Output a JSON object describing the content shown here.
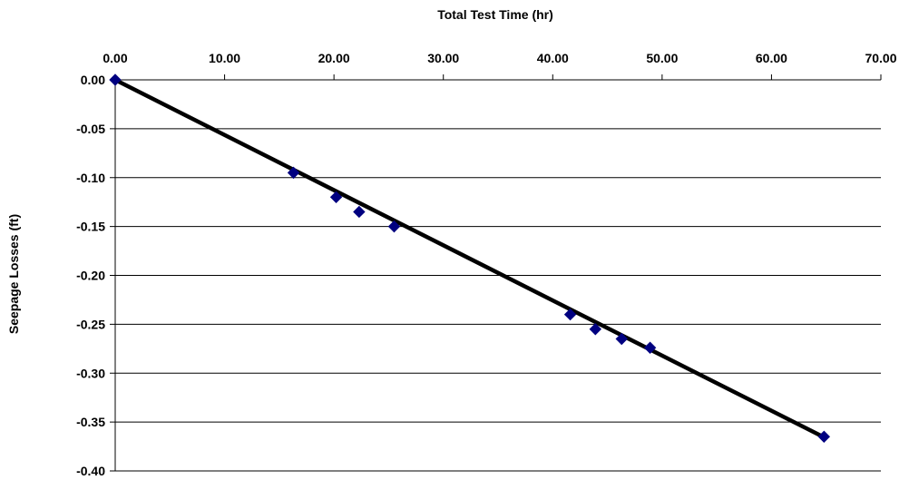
{
  "chart_data": {
    "type": "scatter",
    "title": "",
    "xlabel": "Total Test Time (hr)",
    "ylabel": "Seepage Losses (ft)",
    "x_axis_position": "top",
    "xlim": [
      0,
      70
    ],
    "ylim": [
      -0.4,
      0.0
    ],
    "x_ticks": [
      "0.00",
      "10.00",
      "20.00",
      "30.00",
      "40.00",
      "50.00",
      "60.00",
      "70.00"
    ],
    "y_ticks": [
      "0.00",
      "-0.05",
      "-0.10",
      "-0.15",
      "-0.20",
      "-0.25",
      "-0.30",
      "-0.35",
      "-0.40"
    ],
    "grid": {
      "horizontal": true,
      "vertical": false
    },
    "legend": "none",
    "series": [
      {
        "x": [
          0.0,
          16.3,
          20.2,
          22.3,
          25.5,
          41.6,
          43.9,
          46.3,
          48.9,
          64.8
        ],
        "y": [
          0.0,
          -0.095,
          -0.12,
          -0.135,
          -0.15,
          -0.24,
          -0.255,
          -0.265,
          -0.274,
          -0.365
        ],
        "marker": "diamond",
        "color": "#000080"
      }
    ],
    "trendline": {
      "type": "linear",
      "x_range": [
        0,
        64.8
      ],
      "slope": -0.005641,
      "intercept": 0.0,
      "color": "#000000"
    }
  }
}
